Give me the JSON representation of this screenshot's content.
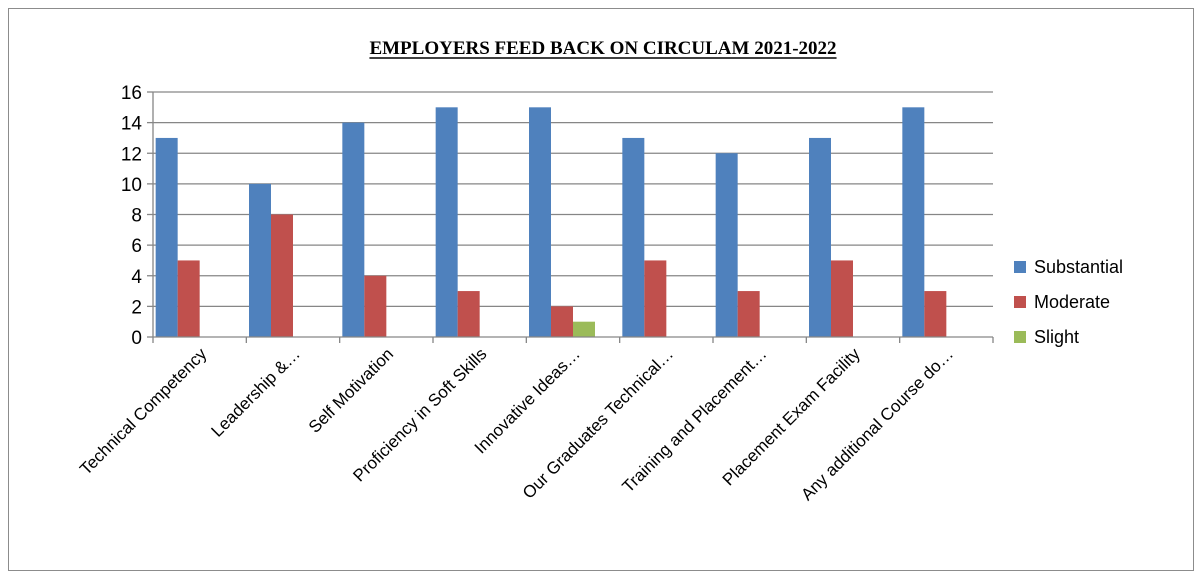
{
  "chart_data": {
    "type": "bar",
    "title": "EMPLOYERS FEED BACK ON CIRCULAM 2021-2022",
    "xlabel": "",
    "ylabel": "",
    "ylim": [
      0,
      16
    ],
    "yticks": [
      0,
      2,
      4,
      6,
      8,
      10,
      12,
      14,
      16
    ],
    "grid": true,
    "legend_position": "right",
    "categories": [
      "Technical Competency",
      "Leadership &…",
      "Self Motivation",
      "Proficiency in Soft Skills",
      "Innovative Ideas…",
      "Our Graduates Technical…",
      "Training and Placement…",
      "Placement Exam Facility",
      "Any additional Course do…"
    ],
    "series": [
      {
        "name": "Substantial",
        "color": "#4f81bd",
        "values": [
          13,
          10,
          14,
          15,
          15,
          13,
          12,
          13,
          15
        ]
      },
      {
        "name": "Moderate",
        "color": "#c0504d",
        "values": [
          5,
          8,
          4,
          3,
          2,
          5,
          3,
          5,
          3
        ]
      },
      {
        "name": "Slight",
        "color": "#9bbb59",
        "values": [
          0,
          0,
          0,
          0,
          1,
          0,
          0,
          0,
          0
        ]
      }
    ]
  }
}
